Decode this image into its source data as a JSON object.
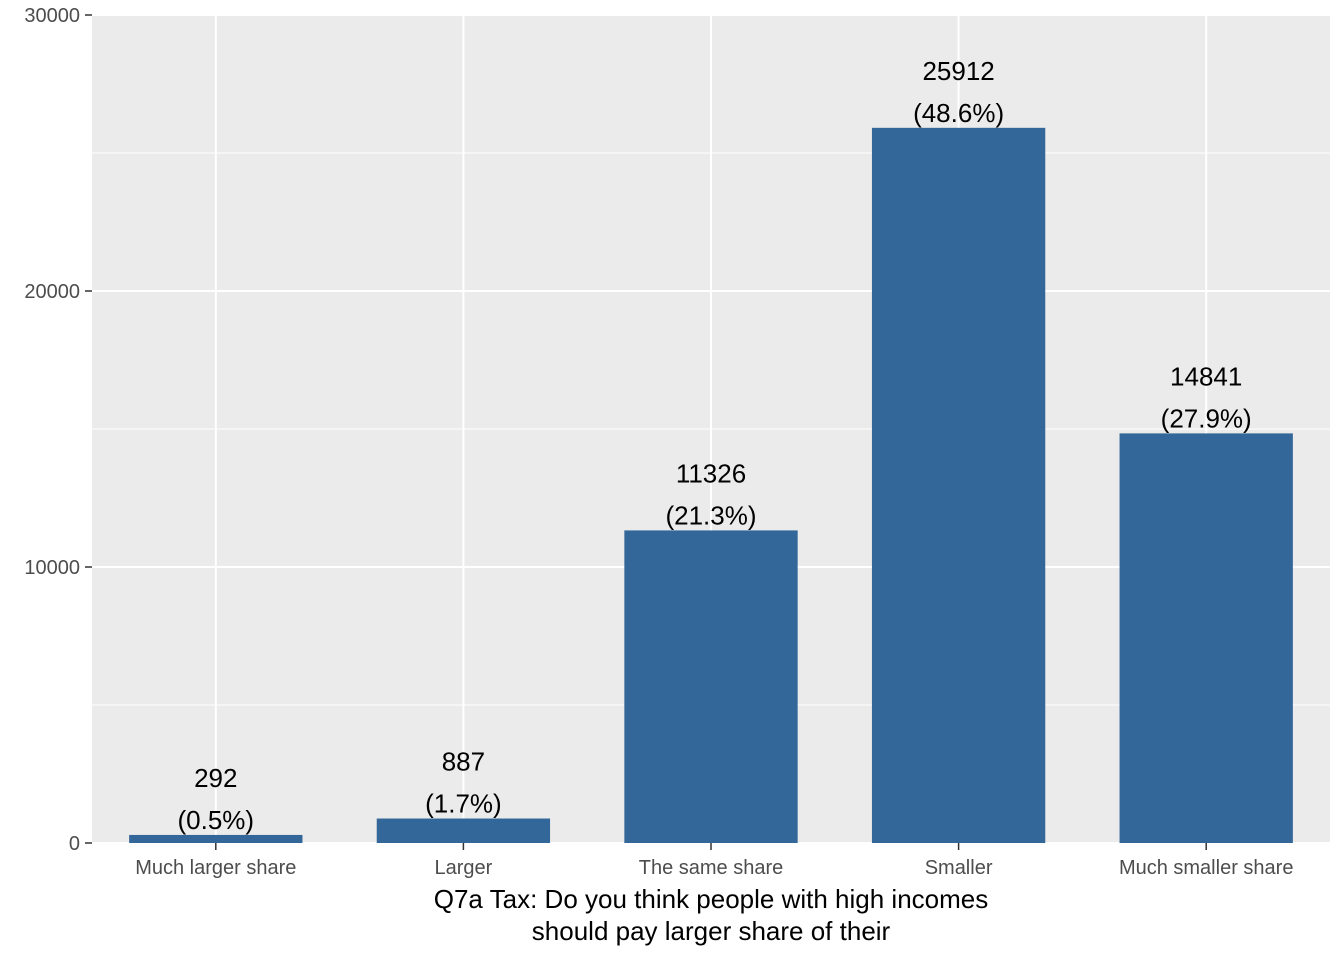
{
  "chart_data": {
    "type": "bar",
    "categories": [
      "Much larger share",
      "Larger",
      "The same share",
      "Smaller",
      "Much smaller share"
    ],
    "values": [
      292,
      887,
      11326,
      25912,
      14841
    ],
    "percent_labels": [
      "(0.5%)",
      "(1.7%)",
      "(21.3%)",
      "(48.6%)",
      "(27.9%)"
    ],
    "xlabel_lines": [
      "Q7a Tax: Do you think people with high incomes",
      "should pay larger share of their"
    ],
    "ylabel": "",
    "ylim": [
      0,
      30000
    ],
    "y_ticks": [
      0,
      10000,
      20000,
      30000
    ],
    "y_minor_ticks": [
      5000,
      15000,
      25000
    ],
    "grid": true,
    "legend": "none"
  },
  "colors": {
    "bar": "#336699",
    "panel_background": "#ebebeb",
    "grid_line": "#ffffff",
    "tick_text": "#4d4d4d",
    "label_text": "#000000"
  }
}
